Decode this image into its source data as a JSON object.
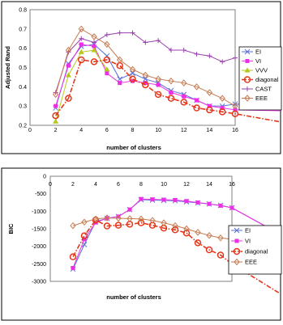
{
  "chart_data": [
    {
      "type": "line",
      "xlabel": "number of clusters",
      "ylabel": "Adjusted Rand",
      "xlim": [
        0,
        16
      ],
      "ylim": [
        0.2,
        0.8
      ],
      "xticks": [
        "0",
        "2",
        "4",
        "6",
        "8",
        "10",
        "12",
        "14",
        "16"
      ],
      "yticks": [
        "0.2",
        "0.3",
        "0.4",
        "0.5",
        "0.6",
        "0.7",
        "0.8"
      ],
      "grid": false,
      "legend_position": "right",
      "series": [
        {
          "name": "EI",
          "color": "#5a6fd6",
          "marker": "x",
          "dash": "none",
          "x": [
            2,
            3,
            4,
            5,
            6,
            7,
            8,
            9,
            10,
            11,
            12,
            13,
            14,
            15,
            16
          ],
          "y": [
            0.29,
            0.52,
            0.61,
            0.62,
            0.56,
            0.44,
            0.47,
            0.44,
            0.42,
            0.38,
            0.36,
            0.33,
            0.3,
            0.3,
            0.31
          ]
        },
        {
          "name": "VI",
          "color": "#ee2ee6",
          "marker": "square",
          "dash": "none",
          "x": [
            2,
            3,
            4,
            5,
            6,
            7,
            8,
            9,
            10,
            11,
            12,
            13,
            14,
            15,
            16
          ],
          "y": [
            0.3,
            0.51,
            0.62,
            0.61,
            0.47,
            0.42,
            0.43,
            0.42,
            0.41,
            0.37,
            0.35,
            0.33,
            0.3,
            0.29,
            0.28
          ]
        },
        {
          "name": "VVV",
          "color": "#b7c51b",
          "marker": "triangle",
          "dash": "none",
          "x": [
            2,
            3,
            4,
            5,
            6
          ],
          "y": [
            0.22,
            0.46,
            0.58,
            0.59,
            0.49
          ]
        },
        {
          "name": "diagonal",
          "color": "#e4361a",
          "marker": "circle",
          "dash": "dashdot",
          "x": [
            2,
            3,
            4,
            5,
            6,
            7,
            8,
            9,
            10,
            11,
            12,
            13,
            14,
            15,
            16
          ],
          "y": [
            0.25,
            0.34,
            0.54,
            0.53,
            0.54,
            0.51,
            0.44,
            0.41,
            0.36,
            0.34,
            0.32,
            0.29,
            0.28,
            0.27,
            0.26
          ]
        },
        {
          "name": "CAST",
          "color": "#9a3fb0",
          "marker": "plus",
          "dash": "none",
          "x": [
            2,
            3,
            4,
            5,
            6,
            7,
            8,
            9,
            10,
            11,
            12,
            13,
            14,
            15,
            16
          ],
          "y": [
            0.37,
            0.58,
            0.65,
            0.63,
            0.67,
            0.68,
            0.68,
            0.63,
            0.64,
            0.59,
            0.59,
            0.57,
            0.56,
            0.53,
            0.55
          ]
        },
        {
          "name": "EEE",
          "color": "#c77a4f",
          "marker": "diamond",
          "dash": "none",
          "x": [
            2,
            3,
            4,
            5,
            6,
            7,
            8,
            9,
            10,
            11,
            12,
            13,
            14,
            15,
            16
          ],
          "y": [
            0.36,
            0.59,
            0.7,
            0.66,
            0.62,
            0.54,
            0.49,
            0.46,
            0.44,
            0.43,
            0.42,
            0.4,
            0.37,
            0.34,
            0.3
          ]
        }
      ]
    },
    {
      "type": "line",
      "xlabel": "number of clusters",
      "ylabel": "BIC",
      "xlim": [
        0,
        16
      ],
      "ylim": [
        -3000,
        0
      ],
      "xticks": [
        "0",
        "2",
        "4",
        "6",
        "8",
        "10",
        "12",
        "14",
        "16"
      ],
      "yticks": [
        "0",
        "-500",
        "-1000",
        "-1500",
        "-2000",
        "-2500",
        "-3000"
      ],
      "grid": false,
      "legend_position": "right",
      "series": [
        {
          "name": "EI",
          "color": "#5a6fd6",
          "marker": "x",
          "dash": "none",
          "x": [
            2,
            3,
            4,
            5,
            6,
            7,
            8,
            9,
            10,
            11,
            12,
            13,
            14,
            15,
            16
          ],
          "y": [
            -2650,
            -1950,
            -1300,
            -1200,
            -1150,
            -950,
            -670,
            -680,
            -690,
            -700,
            -730,
            -760,
            -790,
            -830,
            -900
          ]
        },
        {
          "name": "VI",
          "color": "#ee2ee6",
          "marker": "square",
          "dash": "none",
          "x": [
            2,
            3,
            4,
            5,
            6,
            7,
            8,
            9,
            10,
            11,
            12,
            13,
            14,
            15,
            16
          ],
          "y": [
            -2620,
            -1800,
            -1320,
            -1200,
            -1150,
            -950,
            -650,
            -660,
            -670,
            -680,
            -710,
            -750,
            -790,
            -840,
            -900
          ]
        },
        {
          "name": "diagonal",
          "color": "#e4361a",
          "marker": "circle",
          "dash": "dashdot",
          "x": [
            2,
            3,
            4,
            5,
            6,
            7,
            8,
            9,
            10,
            11,
            12,
            13,
            14,
            15,
            16
          ],
          "y": [
            -2300,
            -1700,
            -1250,
            -1420,
            -1400,
            -1370,
            -1330,
            -1400,
            -1480,
            -1530,
            -1620,
            -1900,
            -2100,
            -2250,
            -2500
          ]
        },
        {
          "name": "EEE",
          "color": "#c77a4f",
          "marker": "diamond",
          "dash": "none",
          "x": [
            2,
            3,
            4,
            5,
            6,
            7,
            8,
            9,
            10,
            11,
            12,
            13,
            14,
            15,
            16
          ],
          "y": [
            -1410,
            -1310,
            -1220,
            -1190,
            -1200,
            -1210,
            -1220,
            -1260,
            -1330,
            -1410,
            -1500,
            -1600,
            -1690,
            -1760,
            -1800
          ]
        }
      ]
    }
  ]
}
